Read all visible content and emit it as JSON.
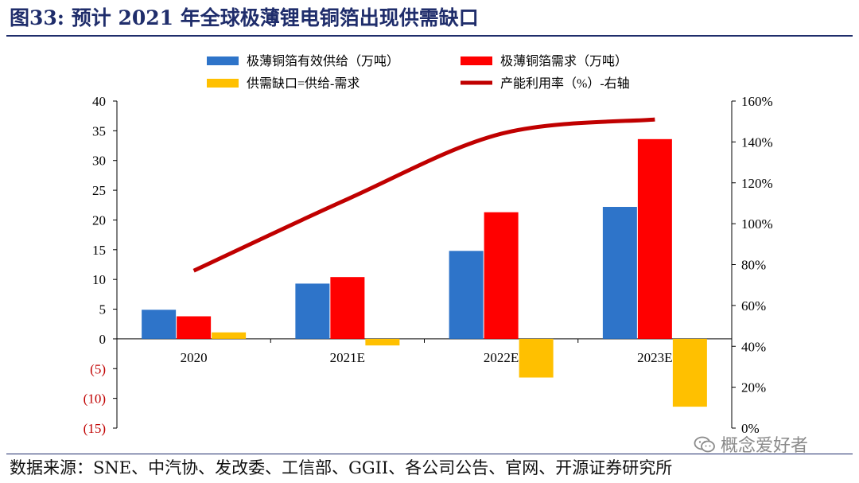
{
  "header": {
    "figure_label": "图33:",
    "title_text": "预计 2021 年全球极薄锂电铜箔出现供需缺口"
  },
  "footer": {
    "source": "数据来源：SNE、中汽协、发改委、工信部、GGII、各公司公告、官网、开源证券研究所",
    "watermark": "概念爱好者",
    "watermark_icon": "wechat-icon"
  },
  "colors": {
    "supply": "#2e74c9",
    "demand": "#ff0000",
    "gap": "#ffc000",
    "utilization": "#c00000",
    "negative_tick": "#c00000",
    "title": "#1f2d6b"
  },
  "chart_data": {
    "type": "bar",
    "categories": [
      "2020",
      "2021E",
      "2022E",
      "2023E"
    ],
    "series": [
      {
        "name": "极薄铜箔有效供给（万吨）",
        "type": "bar",
        "axis": "left",
        "color": "#2e74c9",
        "values": [
          4.9,
          9.3,
          14.8,
          22.2
        ]
      },
      {
        "name": "极薄铜箔需求（万吨）",
        "type": "bar",
        "axis": "left",
        "color": "#ff0000",
        "values": [
          3.8,
          10.4,
          21.3,
          33.6
        ]
      },
      {
        "name": "供需缺口=供给-需求",
        "type": "bar",
        "axis": "left",
        "color": "#ffc000",
        "values": [
          1.1,
          -1.1,
          -6.5,
          -11.4
        ]
      },
      {
        "name": "产能利用率（%）-右轴",
        "type": "line",
        "axis": "right",
        "color": "#c00000",
        "values": [
          77,
          112,
          144,
          151
        ]
      }
    ],
    "y_left": {
      "min": -15,
      "max": 40,
      "step": 5,
      "tick_labels": [
        "(15)",
        "(10)",
        "(5)",
        "0",
        "5",
        "10",
        "15",
        "20",
        "25",
        "30",
        "35",
        "40"
      ]
    },
    "y_right": {
      "min": 0,
      "max": 160,
      "step": 20,
      "tick_labels": [
        "0%",
        "20%",
        "40%",
        "60%",
        "80%",
        "100%",
        "120%",
        "140%",
        "160%"
      ]
    },
    "legend_position": "top",
    "grid": false
  }
}
